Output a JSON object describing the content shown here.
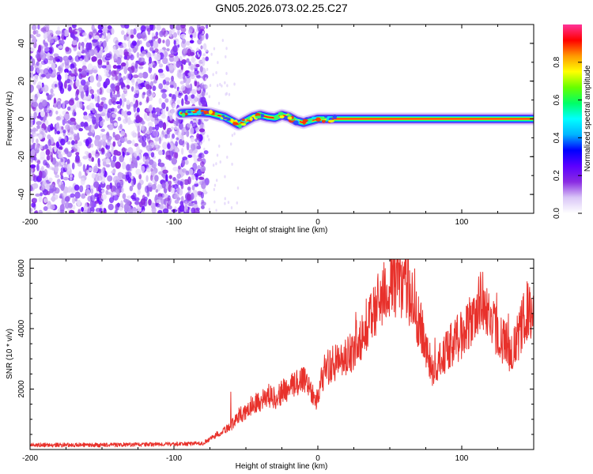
{
  "chart_data": [
    {
      "type": "heatmap",
      "title": "GN05.2026.073.02.25.C27",
      "xlabel": "Height of straight line (km)",
      "ylabel": "Frequency (Hz)",
      "xlim": [
        -200,
        150
      ],
      "ylim": [
        -50,
        50
      ],
      "x_ticks": [
        -200,
        -100,
        0,
        100
      ],
      "y_ticks": [
        -40,
        -20,
        0,
        20,
        40
      ],
      "colorbar": {
        "label": "Normalized spectral amplitude",
        "range": [
          0,
          1
        ],
        "ticks": [
          "0.0",
          "0.2",
          "0.4",
          "0.6",
          "0.8"
        ],
        "colors": [
          "#ffffff",
          "#d9c6f7",
          "#8a2be2",
          "#5b00ff",
          "#0000ff",
          "#00b4ff",
          "#00ffff",
          "#00ff66",
          "#66ff00",
          "#ffff00",
          "#ff9900",
          "#ff0000",
          "#ff3399"
        ]
      },
      "noise_region": {
        "x_range": [
          -200,
          -85
        ],
        "freq_range": [
          -50,
          50
        ]
      },
      "ridge": {
        "x": [
          -95,
          -85,
          -75,
          -65,
          -60,
          -55,
          -50,
          -45,
          -40,
          -35,
          -30,
          -25,
          -20,
          -15,
          -10,
          -5,
          0,
          10,
          20,
          30,
          40,
          60,
          80,
          100,
          120,
          150
        ],
        "frequency": [
          3,
          3.5,
          3,
          1,
          -1,
          -3,
          -1,
          1,
          2,
          1,
          0.5,
          2,
          1,
          -1,
          -2,
          -1,
          0,
          0,
          0,
          0,
          0,
          0,
          0,
          0,
          0,
          0
        ]
      }
    },
    {
      "type": "line",
      "xlabel": "Height of straight line (km)",
      "ylabel": "SNR (10 * v/v)",
      "xlim": [
        -200,
        150
      ],
      "ylim": [
        0,
        6300
      ],
      "x_ticks": [
        -200,
        -100,
        0,
        100
      ],
      "y_ticks": [
        2000,
        4000,
        6000
      ],
      "series": [
        {
          "name": "SNR",
          "color": "#e8312b",
          "x": [
            -200,
            -150,
            -100,
            -80,
            -75,
            -70,
            -65,
            -60,
            -55,
            -50,
            -45,
            -40,
            -35,
            -30,
            -25,
            -20,
            -15,
            -10,
            -5,
            0,
            2,
            5,
            10,
            15,
            20,
            25,
            30,
            35,
            40,
            45,
            50,
            55,
            60,
            65,
            70,
            75,
            80,
            85,
            90,
            95,
            100,
            105,
            110,
            115,
            120,
            125,
            130,
            135,
            140,
            145,
            150
          ],
          "values": [
            150,
            150,
            180,
            200,
            350,
            500,
            650,
            800,
            1150,
            1200,
            1550,
            1600,
            1800,
            1700,
            1900,
            2000,
            2200,
            2400,
            2000,
            1600,
            2200,
            2700,
            2800,
            2900,
            3000,
            3400,
            3800,
            4200,
            4600,
            5200,
            5400,
            5500,
            5600,
            5000,
            4300,
            3400,
            2600,
            2900,
            3300,
            3600,
            3800,
            4100,
            4600,
            5000,
            4200,
            3900,
            3500,
            3200,
            3800,
            4600,
            4300
          ]
        }
      ]
    }
  ]
}
